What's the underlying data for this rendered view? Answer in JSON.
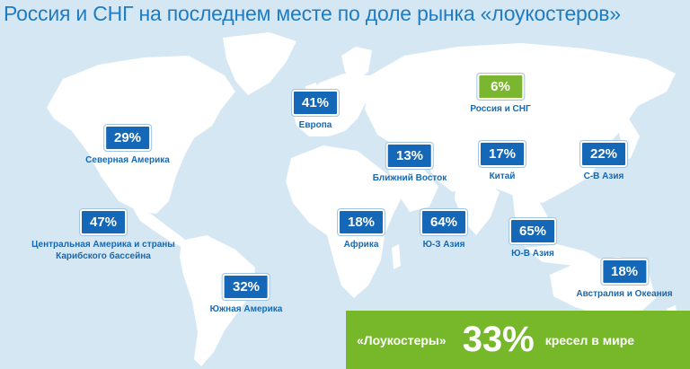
{
  "title": "Россия и СНГ на последнем месте по доле рынка «лоукостеров»",
  "regions": [
    {
      "id": "north-america",
      "value": "29%",
      "label": "Северная Америка",
      "highlight": false
    },
    {
      "id": "central-america",
      "value": "47%",
      "label": "Центральная Америка и страны Карибского бассейна",
      "highlight": false
    },
    {
      "id": "south-america",
      "value": "32%",
      "label": "Южная Америка",
      "highlight": false
    },
    {
      "id": "europe",
      "value": "41%",
      "label": "Европа",
      "highlight": false
    },
    {
      "id": "russia-cis",
      "value": "6%",
      "label": "Россия и СНГ",
      "highlight": true
    },
    {
      "id": "middle-east",
      "value": "13%",
      "label": "Ближний Восток",
      "highlight": false
    },
    {
      "id": "china",
      "value": "17%",
      "label": "Китай",
      "highlight": false
    },
    {
      "id": "ne-asia",
      "value": "22%",
      "label": "С-В Азия",
      "highlight": false
    },
    {
      "id": "africa",
      "value": "18%",
      "label": "Африка",
      "highlight": false
    },
    {
      "id": "sw-asia",
      "value": "64%",
      "label": "Ю-З Азия",
      "highlight": false
    },
    {
      "id": "se-asia",
      "value": "65%",
      "label": "Ю-В Азия",
      "highlight": false
    },
    {
      "id": "australia",
      "value": "18%",
      "label": "Австралия и Океания",
      "highlight": false
    }
  ],
  "summary": {
    "left": "«Лоукостеры»",
    "big": "33%",
    "right": "кресел в мире"
  },
  "colors": {
    "ocean": "#d5e7f3",
    "land": "#ffffff",
    "badge": "#1568b8",
    "highlight": "#7ab630",
    "summary": "#76b82a"
  }
}
